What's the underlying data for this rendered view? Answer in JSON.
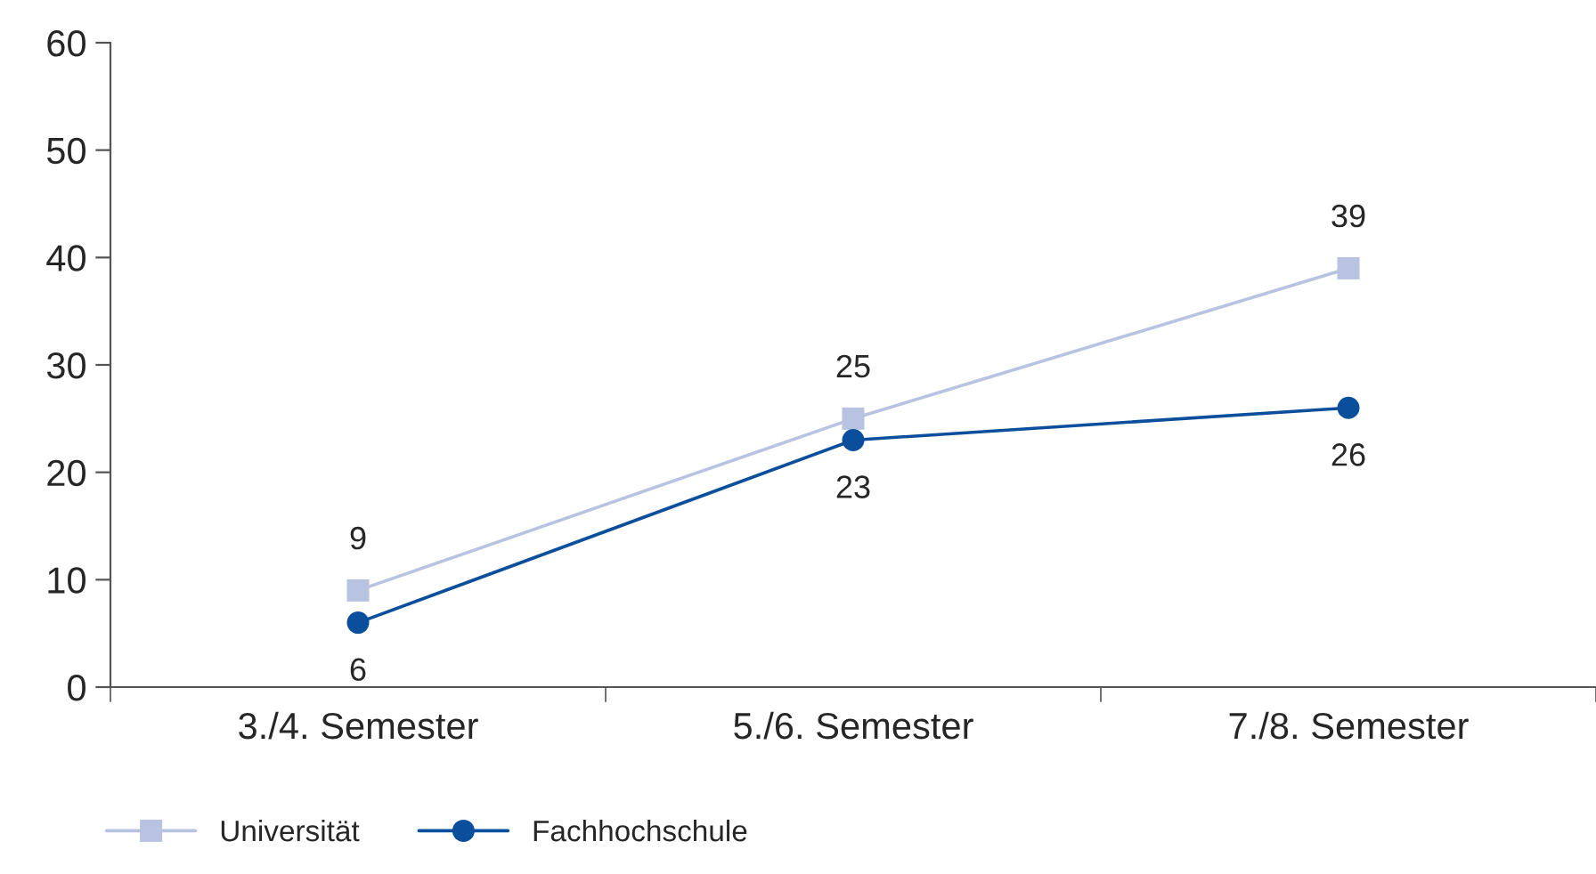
{
  "chart_data": {
    "type": "line",
    "categories": [
      "3./4. Semester",
      "5./6. Semester",
      "7./8. Semester"
    ],
    "series": [
      {
        "name": "Universität",
        "color": "#b8c3e1",
        "marker": "square",
        "values": [
          9,
          25,
          39
        ]
      },
      {
        "name": "Fachhochschule",
        "color": "#0b4f9c",
        "marker": "circle",
        "values": [
          6,
          23,
          26
        ]
      }
    ],
    "ylim": [
      0,
      60
    ],
    "yticks": [
      0,
      10,
      20,
      30,
      40,
      50,
      60
    ],
    "grid": false,
    "legend": "bottom left",
    "data_labels": true
  }
}
